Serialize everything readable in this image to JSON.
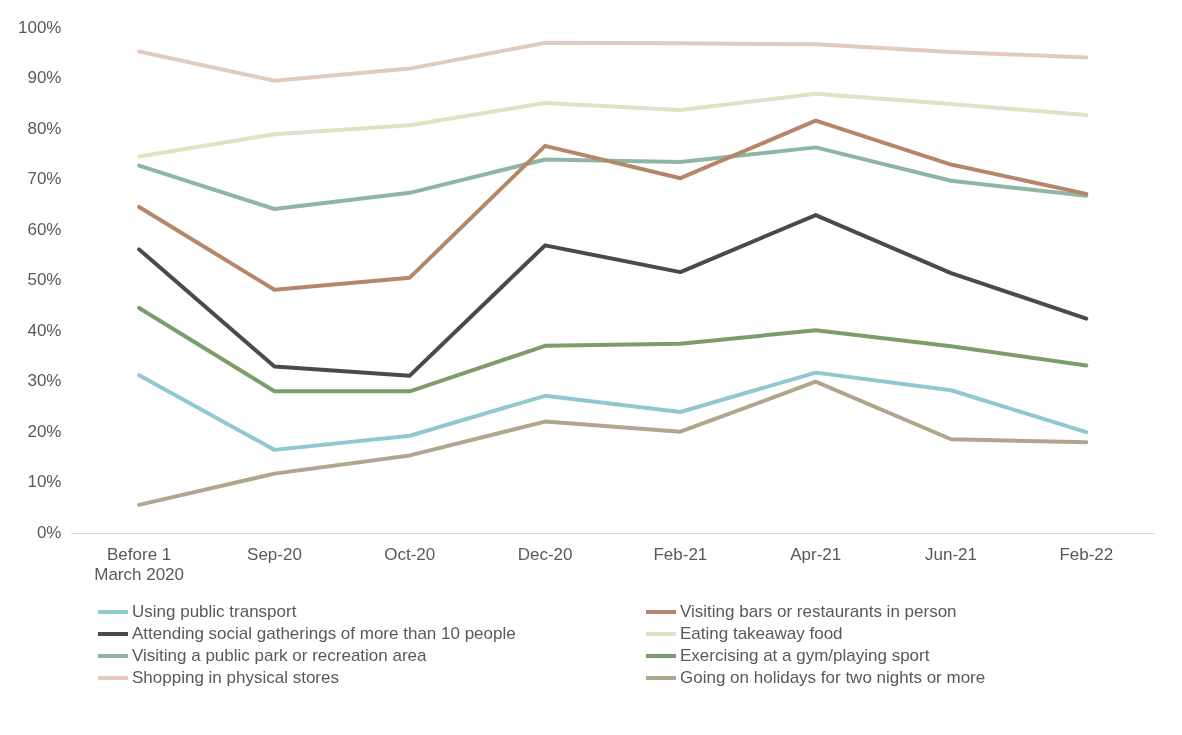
{
  "chart_data": {
    "type": "line",
    "categories": [
      "Before 1 March 2020",
      "Sep-20",
      "Oct-20",
      "Dec-20",
      "Feb-21",
      "Apr-21",
      "Jun-21",
      "Feb-22"
    ],
    "series": [
      {
        "name": "Using public transport",
        "color": "#8fc8d0",
        "values": [
          31.3,
          16.5,
          19.3,
          27.2,
          24,
          31.8,
          28.3,
          20
        ]
      },
      {
        "name": "Visiting bars or restaurants in person",
        "color": "#b5876a",
        "values": [
          64.6,
          48.2,
          50.6,
          76.7,
          70.3,
          81.7,
          73,
          67.2
        ]
      },
      {
        "name": "Attending social gatherings of more than 10 people",
        "color": "#4a4a4a",
        "values": [
          56.2,
          33,
          31.2,
          57,
          51.7,
          63,
          51.5,
          42.5
        ]
      },
      {
        "name": "Eating takeaway food",
        "color": "#dde3c4",
        "values": [
          74.6,
          79,
          80.8,
          85.2,
          83.8,
          87,
          85,
          82.8
        ]
      },
      {
        "name": "Visiting a public park or recreation area",
        "color": "#8fb5a5",
        "values": [
          72.8,
          64.2,
          67.4,
          74,
          73.5,
          76.4,
          69.8,
          66.8
        ]
      },
      {
        "name": "Exercising at a gym/playing sport",
        "color": "#7a9e6a",
        "values": [
          44.6,
          28.1,
          28.1,
          37.1,
          37.5,
          40.2,
          37,
          33.2
        ]
      },
      {
        "name": "Shopping in physical stores",
        "color": "#e2cbbd",
        "values": [
          95.4,
          89.6,
          92,
          97.1,
          97,
          96.8,
          95.3,
          94.2
        ]
      },
      {
        "name": "Going on holidays for two nights or more",
        "color": "#b0a68e",
        "values": [
          5.6,
          11.8,
          15.4,
          22.1,
          20.1,
          30,
          18.6,
          18
        ]
      }
    ],
    "ylim": [
      0,
      100
    ],
    "yticks": [
      {
        "value": 0,
        "label": "0%"
      },
      {
        "value": 10,
        "label": "10%"
      },
      {
        "value": 20,
        "label": "20%"
      },
      {
        "value": 30,
        "label": "30%"
      },
      {
        "value": 40,
        "label": "40%"
      },
      {
        "value": 50,
        "label": "50%"
      },
      {
        "value": 60,
        "label": "60%"
      },
      {
        "value": 70,
        "label": "70%"
      },
      {
        "value": 80,
        "label": "80%"
      },
      {
        "value": 90,
        "label": "90%"
      },
      {
        "value": 100,
        "label": "100%"
      }
    ],
    "grid": false,
    "legend": "bottom",
    "marker": "none",
    "line_style": "solid"
  }
}
